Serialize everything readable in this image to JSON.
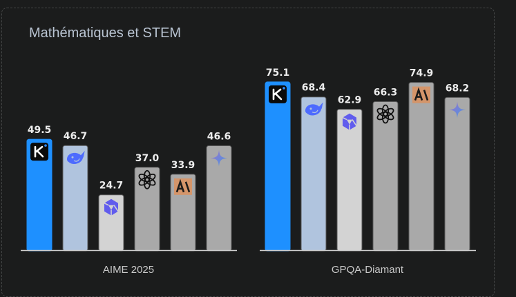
{
  "title": "Mathématiques et STEM",
  "chart_data": {
    "type": "bar",
    "title": "Mathématiques et STEM",
    "xlabel": "",
    "ylabel": "",
    "ylim": [
      0,
      80
    ],
    "grid": false,
    "legend": "none (model logos shown on bars)",
    "categories": [
      "AIME 2025",
      "GPQA-Diamant"
    ],
    "series": [
      {
        "name": "Kimi",
        "icon": "kimi-logo-icon",
        "color": "#1e90ff",
        "values": [
          49.5,
          75.1
        ]
      },
      {
        "name": "DeepSeek",
        "icon": "deepseek-whale-icon",
        "color": "#b0c4de",
        "values": [
          46.7,
          68.4
        ]
      },
      {
        "name": "Qwen",
        "icon": "qwen-logo-icon",
        "color": "#d3d3d3",
        "values": [
          24.7,
          62.9
        ]
      },
      {
        "name": "OpenAI",
        "icon": "openai-logo-icon",
        "color": "#a9a9a9",
        "values": [
          37.0,
          66.3
        ]
      },
      {
        "name": "Anthropic",
        "icon": "anthropic-logo-icon",
        "color": "#a9a9a9",
        "values": [
          33.9,
          74.9
        ]
      },
      {
        "name": "Gemini",
        "icon": "gemini-sparkle-icon",
        "color": "#a9a9a9",
        "values": [
          46.6,
          68.2
        ]
      }
    ],
    "value_labels": [
      [
        "49.5",
        "46.7",
        "24.7",
        "37.0",
        "33.9",
        "46.6"
      ],
      [
        "75.1",
        "68.4",
        "62.9",
        "66.3",
        "74.9",
        "68.2"
      ]
    ]
  }
}
